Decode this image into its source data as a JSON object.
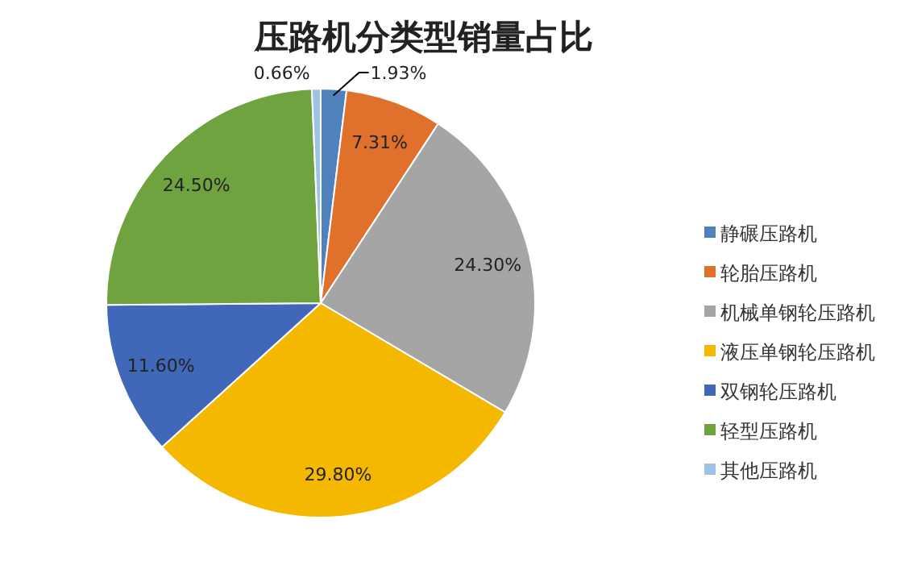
{
  "chart_data": {
    "type": "pie",
    "title": "压路机分类型销量占比",
    "categories": [
      "静碾压路机",
      "轮胎压路机",
      "机械单钢轮压路机",
      "液压单钢轮压路机",
      "双钢轮压路机",
      "轻型压路机",
      "其他压路机"
    ],
    "values": [
      1.93,
      7.31,
      24.3,
      29.8,
      11.6,
      24.5,
      0.66
    ],
    "value_labels": [
      "1.93%",
      "7.31%",
      "24.30%",
      "29.80%",
      "11.60%",
      "24.50%",
      "0.66%"
    ],
    "colors": [
      "#4f81bd",
      "#e0712c",
      "#a5a5a5",
      "#f5b800",
      "#4168b8",
      "#6fa340",
      "#9dc3e6"
    ],
    "legend": "right"
  }
}
